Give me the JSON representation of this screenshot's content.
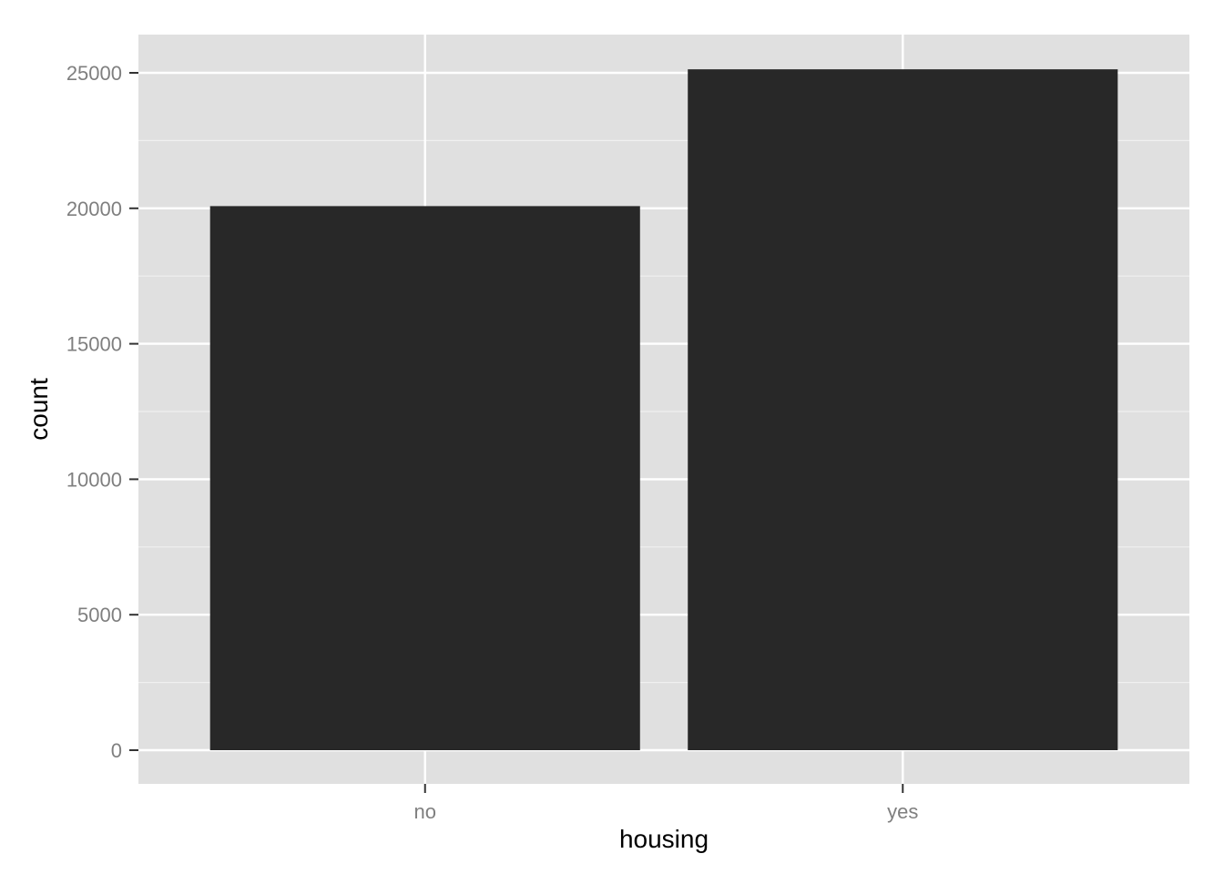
{
  "chart_data": {
    "type": "bar",
    "categories": [
      "no",
      "yes"
    ],
    "values": [
      20081,
      25130
    ],
    "xlabel": "housing",
    "ylabel": "count",
    "ylim": [
      0,
      27000
    ],
    "yticks": [
      0,
      5000,
      10000,
      15000,
      20000,
      25000
    ],
    "ytick_labels": [
      "0",
      "5000",
      "10000",
      "15000",
      "20000",
      "25000"
    ],
    "grid": true,
    "legend": "none",
    "colors": {
      "bar": "#282828",
      "panel": "#e0e0e0",
      "grid_major": "#ffffff",
      "grid_minor": "#f0f0f0",
      "tick_label": "#7f7f7f"
    }
  }
}
